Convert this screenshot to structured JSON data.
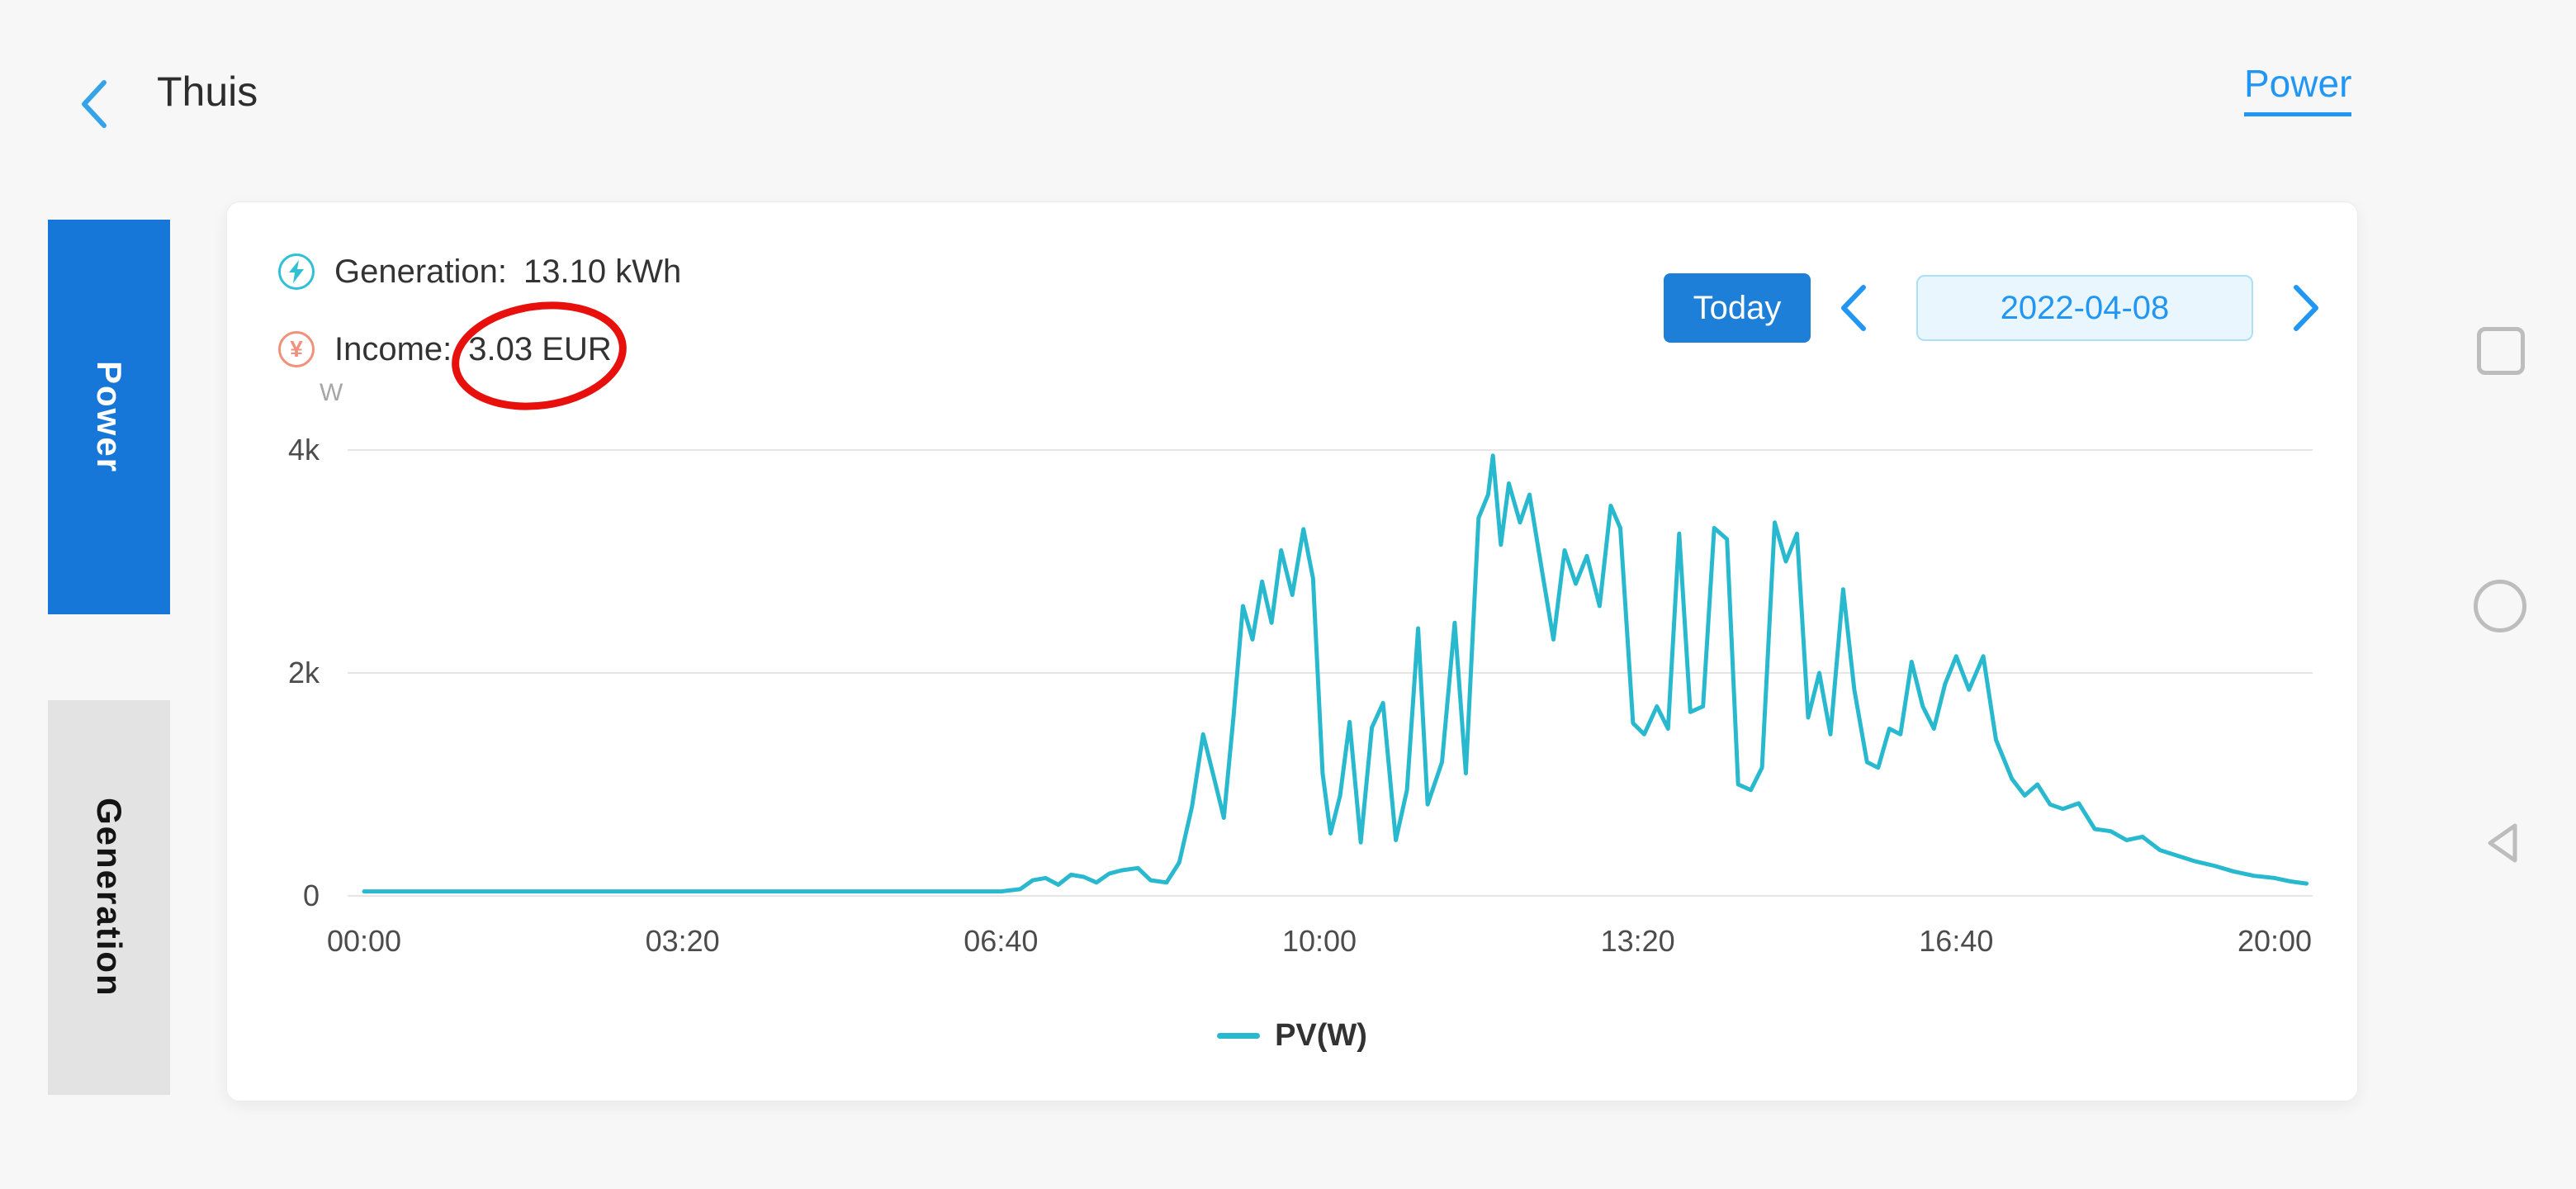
{
  "header": {
    "title": "Thuis",
    "nav_link": "Power"
  },
  "sidebar": {
    "tabs": [
      {
        "label": "Power",
        "active": true
      },
      {
        "label": "Generation",
        "active": false
      }
    ]
  },
  "stats": {
    "generation": {
      "label": "Generation:",
      "value": "13.10 kWh"
    },
    "income": {
      "label": "Income:",
      "value": "3.03 EUR"
    }
  },
  "controls": {
    "today_label": "Today",
    "date_value": "2022-04-08"
  },
  "legend": {
    "label": "PV(W)",
    "color": "#28b9cf"
  },
  "annotation": {
    "shape": "red-ellipse",
    "target": "income-value",
    "color": "#e8100c"
  },
  "colors": {
    "accent_blue": "#1d7fd8",
    "link_blue": "#2196f3",
    "line_teal": "#28b9cf",
    "active_tab_blue": "#1777d8"
  },
  "android_nav": {
    "buttons": [
      "recents",
      "home",
      "back"
    ]
  },
  "chart_data": {
    "type": "line",
    "title": "",
    "xlabel": "",
    "ylabel": "W",
    "unit_label": "W",
    "ylim": [
      0,
      4000
    ],
    "grid": true,
    "legend_position": "bottom",
    "x_ticks": [
      {
        "minutes": 0,
        "label": "00:00"
      },
      {
        "minutes": 200,
        "label": "03:20"
      },
      {
        "minutes": 400,
        "label": "06:40"
      },
      {
        "minutes": 600,
        "label": "10:00"
      },
      {
        "minutes": 800,
        "label": "13:20"
      },
      {
        "minutes": 1000,
        "label": "16:40"
      },
      {
        "minutes": 1200,
        "label": "20:00"
      }
    ],
    "y_ticks": [
      {
        "value": 4000,
        "label": "4k"
      },
      {
        "value": 2000,
        "label": "2k"
      },
      {
        "value": 0,
        "label": "0"
      }
    ],
    "series": [
      {
        "name": "PV(W)",
        "color": "#28b9cf",
        "points": [
          [
            0,
            40
          ],
          [
            80,
            40
          ],
          [
            160,
            40
          ],
          [
            240,
            40
          ],
          [
            320,
            40
          ],
          [
            400,
            40
          ],
          [
            412,
            60
          ],
          [
            420,
            140
          ],
          [
            428,
            160
          ],
          [
            436,
            100
          ],
          [
            444,
            190
          ],
          [
            452,
            170
          ],
          [
            460,
            120
          ],
          [
            468,
            200
          ],
          [
            476,
            230
          ],
          [
            486,
            250
          ],
          [
            494,
            140
          ],
          [
            504,
            120
          ],
          [
            512,
            300
          ],
          [
            520,
            800
          ],
          [
            527,
            1450
          ],
          [
            534,
            1050
          ],
          [
            540,
            700
          ],
          [
            546,
            1600
          ],
          [
            552,
            2600
          ],
          [
            558,
            2300
          ],
          [
            564,
            2820
          ],
          [
            570,
            2450
          ],
          [
            576,
            3100
          ],
          [
            583,
            2700
          ],
          [
            590,
            3290
          ],
          [
            596,
            2850
          ],
          [
            602,
            1100
          ],
          [
            607,
            560
          ],
          [
            613,
            900
          ],
          [
            619,
            1560
          ],
          [
            626,
            480
          ],
          [
            633,
            1510
          ],
          [
            640,
            1730
          ],
          [
            648,
            500
          ],
          [
            655,
            950
          ],
          [
            662,
            2400
          ],
          [
            668,
            820
          ],
          [
            677,
            1200
          ],
          [
            685,
            2450
          ],
          [
            692,
            1100
          ],
          [
            700,
            3390
          ],
          [
            706,
            3600
          ],
          [
            709,
            3950
          ],
          [
            714,
            3150
          ],
          [
            719,
            3700
          ],
          [
            726,
            3350
          ],
          [
            732,
            3600
          ],
          [
            740,
            2900
          ],
          [
            747,
            2300
          ],
          [
            754,
            3100
          ],
          [
            761,
            2800
          ],
          [
            768,
            3050
          ],
          [
            776,
            2600
          ],
          [
            783,
            3500
          ],
          [
            789,
            3300
          ],
          [
            797,
            1550
          ],
          [
            804,
            1450
          ],
          [
            812,
            1700
          ],
          [
            819,
            1500
          ],
          [
            826,
            3250
          ],
          [
            833,
            1650
          ],
          [
            841,
            1700
          ],
          [
            848,
            3300
          ],
          [
            856,
            3200
          ],
          [
            863,
            1000
          ],
          [
            871,
            950
          ],
          [
            878,
            1150
          ],
          [
            886,
            3350
          ],
          [
            893,
            3000
          ],
          [
            900,
            3250
          ],
          [
            907,
            1600
          ],
          [
            914,
            2000
          ],
          [
            921,
            1450
          ],
          [
            929,
            2750
          ],
          [
            936,
            1850
          ],
          [
            944,
            1200
          ],
          [
            951,
            1150
          ],
          [
            958,
            1500
          ],
          [
            965,
            1450
          ],
          [
            972,
            2100
          ],
          [
            979,
            1700
          ],
          [
            986,
            1500
          ],
          [
            993,
            1900
          ],
          [
            1000,
            2150
          ],
          [
            1008,
            1850
          ],
          [
            1017,
            2150
          ],
          [
            1025,
            1400
          ],
          [
            1035,
            1050
          ],
          [
            1043,
            900
          ],
          [
            1051,
            1000
          ],
          [
            1059,
            820
          ],
          [
            1067,
            780
          ],
          [
            1077,
            830
          ],
          [
            1087,
            600
          ],
          [
            1097,
            580
          ],
          [
            1107,
            500
          ],
          [
            1117,
            530
          ],
          [
            1128,
            410
          ],
          [
            1139,
            360
          ],
          [
            1150,
            310
          ],
          [
            1162,
            270
          ],
          [
            1174,
            220
          ],
          [
            1187,
            180
          ],
          [
            1200,
            160
          ],
          [
            1210,
            130
          ],
          [
            1220,
            110
          ]
        ]
      }
    ]
  }
}
